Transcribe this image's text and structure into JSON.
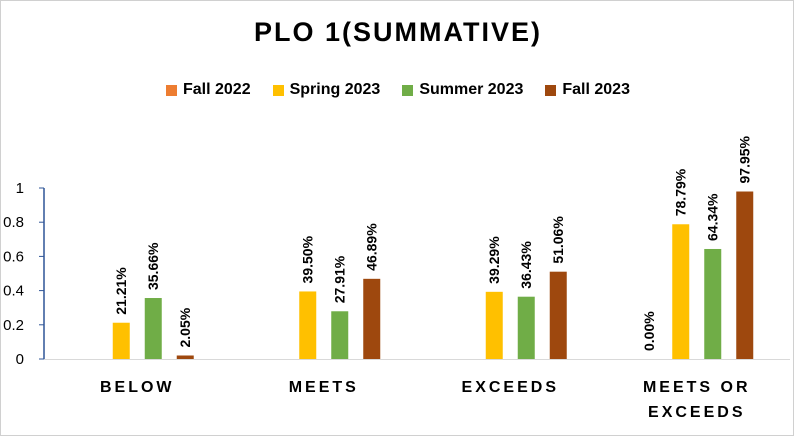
{
  "chart_data": {
    "type": "bar",
    "title": "PLO 1(SUMMATIVE)",
    "categories": [
      "BELOW",
      "MEETS",
      "EXCEEDS",
      "MEETS OR EXCEEDS"
    ],
    "series": [
      {
        "name": "Fall 2022",
        "color": "#ED7D31",
        "values": [
          null,
          null,
          null,
          0.0
        ],
        "labels": [
          "",
          "",
          "",
          "0.00%"
        ]
      },
      {
        "name": "Spring 2023",
        "color": "#FFC000",
        "values": [
          0.2121,
          0.395,
          0.3929,
          0.7879
        ],
        "labels": [
          "21.21%",
          "39.50%",
          "39.29%",
          "78.79%"
        ]
      },
      {
        "name": "Summer 2023",
        "color": "#70AD47",
        "values": [
          0.3566,
          0.2791,
          0.3643,
          0.6434
        ],
        "labels": [
          "35.66%",
          "27.91%",
          "36.43%",
          "64.34%"
        ]
      },
      {
        "name": "Fall 2023",
        "color": "#9E480E",
        "values": [
          0.0205,
          0.4689,
          0.5106,
          0.9795
        ],
        "labels": [
          "2.05%",
          "46.89%",
          "51.06%",
          "97.95%"
        ]
      }
    ],
    "ylim": [
      0,
      1
    ],
    "yticks": [
      "0",
      "0.2",
      "0.4",
      "0.6",
      "0.8",
      "1"
    ],
    "grid": false,
    "legend_position": "top"
  }
}
